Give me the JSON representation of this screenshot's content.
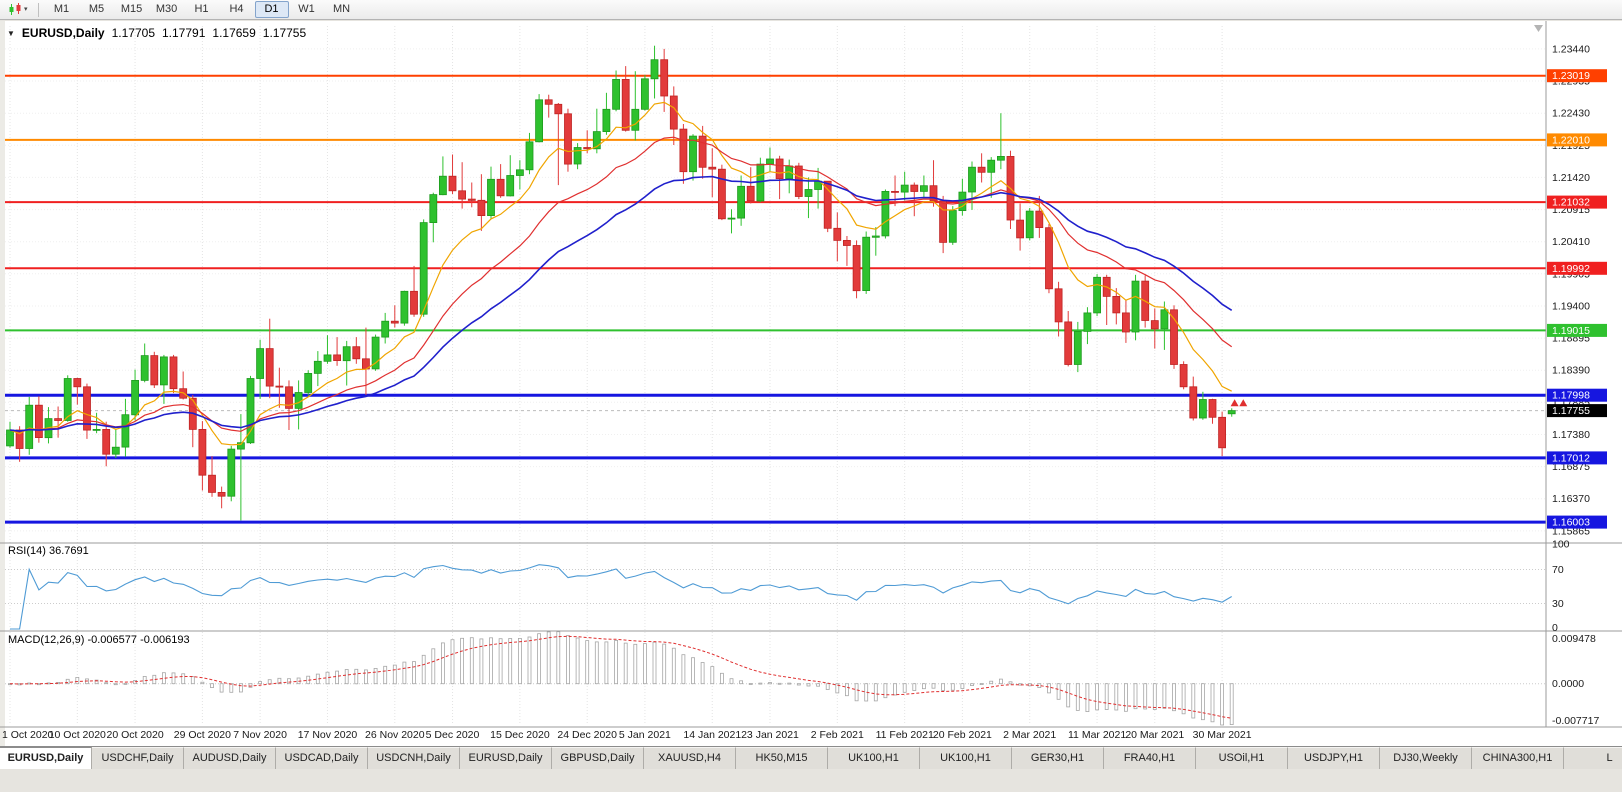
{
  "icons": {
    "window_caret": "▼",
    "toolbar_caret": "▾"
  },
  "toolbar": {
    "timeframes": [
      {
        "label": "M1",
        "active": false
      },
      {
        "label": "M5",
        "active": false
      },
      {
        "label": "M15",
        "active": false
      },
      {
        "label": "M30",
        "active": false
      },
      {
        "label": "H1",
        "active": false
      },
      {
        "label": "H4",
        "active": false
      },
      {
        "label": "D1",
        "active": true
      },
      {
        "label": "W1",
        "active": false
      },
      {
        "label": "MN",
        "active": false
      }
    ]
  },
  "chart": {
    "title": {
      "symbol_period": "EURUSD,Daily",
      "open": "1.17705",
      "high": "1.17791",
      "low": "1.17659",
      "close": "1.17755"
    },
    "price_axis": {
      "top_price": 1.238,
      "bottom_price": 1.1569,
      "label_start": 1.2344,
      "label_step": 0.00505,
      "label_count": 16
    },
    "candle_colors": {
      "up": "#2ec12e",
      "up_border": "#1d9a1d",
      "down": "#e23b3b",
      "down_border": "#bf2323"
    },
    "hlines": [
      {
        "price": 1.23019,
        "label": "1.23019",
        "color": "#ff4000",
        "width": 2
      },
      {
        "price": 1.2201,
        "label": "1.22010",
        "color": "#ff8a00",
        "width": 2
      },
      {
        "price": 1.21032,
        "label": "1.21032",
        "color": "#f02020",
        "width": 2
      },
      {
        "price": 1.19992,
        "label": "1.19992",
        "color": "#f02020",
        "width": 2
      },
      {
        "price": 1.19015,
        "label": "1.19015",
        "color": "#2fc12f",
        "width": 2
      },
      {
        "price": 1.17998,
        "label": "1.17998",
        "color": "#1616e0",
        "width": 3
      },
      {
        "price": 1.17012,
        "label": "1.17012",
        "color": "#1616e0",
        "width": 3
      },
      {
        "price": 1.16003,
        "label": "1.16003",
        "color": "#1616e0",
        "width": 3
      }
    ],
    "current_price": {
      "value": "1.17755",
      "tag_bg": "#000000"
    },
    "moving_averages": [
      {
        "period": 9,
        "color": "#f0a500",
        "width": 1.2
      },
      {
        "period": 20,
        "color": "#e03030",
        "width": 1.2
      },
      {
        "period": 34,
        "color": "#2020cc",
        "width": 1.6
      }
    ],
    "markers": {
      "color": "#e03030",
      "arrows": [
        {
          "i": 127.3,
          "price": 1.1787
        },
        {
          "i": 128.2,
          "price": 1.1787
        }
      ]
    },
    "candles": [
      [
        1.172,
        1.1758,
        1.1717,
        1.1745
      ],
      [
        1.1745,
        1.1751,
        1.1695,
        1.1716
      ],
      [
        1.1716,
        1.1797,
        1.1706,
        1.1784
      ],
      [
        1.1784,
        1.1798,
        1.1725,
        1.1733
      ],
      [
        1.1733,
        1.1781,
        1.1724,
        1.1763
      ],
      [
        1.1763,
        1.1782,
        1.1733,
        1.176
      ],
      [
        1.176,
        1.1831,
        1.1758,
        1.1826
      ],
      [
        1.1826,
        1.1827,
        1.1785,
        1.1813
      ],
      [
        1.1813,
        1.1818,
        1.1731,
        1.1745
      ],
      [
        1.1745,
        1.1772,
        1.174,
        1.1746
      ],
      [
        1.1746,
        1.1758,
        1.1688,
        1.1707
      ],
      [
        1.1707,
        1.1746,
        1.1701,
        1.1718
      ],
      [
        1.1718,
        1.1794,
        1.1703,
        1.1769
      ],
      [
        1.1769,
        1.184,
        1.176,
        1.1823
      ],
      [
        1.1823,
        1.1881,
        1.182,
        1.1862
      ],
      [
        1.1862,
        1.1868,
        1.1811,
        1.1816
      ],
      [
        1.1816,
        1.1863,
        1.1786,
        1.186
      ],
      [
        1.186,
        1.1863,
        1.1803,
        1.181
      ],
      [
        1.181,
        1.1837,
        1.1793,
        1.1795
      ],
      [
        1.1795,
        1.18,
        1.1718,
        1.1746
      ],
      [
        1.1746,
        1.1759,
        1.165,
        1.1674
      ],
      [
        1.1674,
        1.1704,
        1.164,
        1.1647
      ],
      [
        1.1647,
        1.1656,
        1.1622,
        1.1641
      ],
      [
        1.1641,
        1.172,
        1.1633,
        1.1715
      ],
      [
        1.1715,
        1.177,
        1.1603,
        1.1725
      ],
      [
        1.1725,
        1.183,
        1.1723,
        1.1826
      ],
      [
        1.1826,
        1.1887,
        1.1794,
        1.1873
      ],
      [
        1.1873,
        1.192,
        1.1795,
        1.1814
      ],
      [
        1.1814,
        1.1843,
        1.178,
        1.1813
      ],
      [
        1.1813,
        1.1823,
        1.1745,
        1.1779
      ],
      [
        1.1779,
        1.1823,
        1.1746,
        1.1804
      ],
      [
        1.1804,
        1.1839,
        1.1799,
        1.1834
      ],
      [
        1.1834,
        1.1869,
        1.1814,
        1.1853
      ],
      [
        1.1853,
        1.1894,
        1.1849,
        1.1863
      ],
      [
        1.1863,
        1.1891,
        1.1846,
        1.1854
      ],
      [
        1.1854,
        1.1885,
        1.1815,
        1.1876
      ],
      [
        1.1876,
        1.1891,
        1.1849,
        1.1857
      ],
      [
        1.1857,
        1.1906,
        1.18,
        1.1841
      ],
      [
        1.1841,
        1.1895,
        1.1838,
        1.1891
      ],
      [
        1.1891,
        1.1929,
        1.1881,
        1.1916
      ],
      [
        1.1916,
        1.1941,
        1.1906,
        1.1913
      ],
      [
        1.1913,
        1.1964,
        1.1909,
        1.1963
      ],
      [
        1.1963,
        1.2003,
        1.1923,
        1.1927
      ],
      [
        1.1927,
        1.2076,
        1.1923,
        1.2071
      ],
      [
        1.2071,
        1.2118,
        1.204,
        1.2115
      ],
      [
        1.2115,
        1.2175,
        1.2114,
        1.2144
      ],
      [
        1.2144,
        1.2178,
        1.2116,
        1.2121
      ],
      [
        1.2121,
        1.2166,
        1.2093,
        1.2108
      ],
      [
        1.2108,
        1.2134,
        1.2095,
        1.2106
      ],
      [
        1.2106,
        1.2147,
        1.2058,
        1.2082
      ],
      [
        1.2082,
        1.2159,
        1.2076,
        1.2139
      ],
      [
        1.2139,
        1.2163,
        1.211,
        1.2113
      ],
      [
        1.2113,
        1.2177,
        1.2112,
        1.2145
      ],
      [
        1.2145,
        1.2169,
        1.2123,
        1.2154
      ],
      [
        1.2154,
        1.2212,
        1.2147,
        1.2198
      ],
      [
        1.2198,
        1.2273,
        1.2197,
        1.2264
      ],
      [
        1.2264,
        1.2272,
        1.2236,
        1.2257
      ],
      [
        1.2257,
        1.2259,
        1.213,
        1.2242
      ],
      [
        1.2242,
        1.225,
        1.2151,
        1.2163
      ],
      [
        1.2163,
        1.2196,
        1.2155,
        1.2189
      ],
      [
        1.2189,
        1.2216,
        1.218,
        1.2187
      ],
      [
        1.2187,
        1.225,
        1.218,
        1.2214
      ],
      [
        1.2214,
        1.2275,
        1.2209,
        1.2249
      ],
      [
        1.2249,
        1.231,
        1.2246,
        1.2296
      ],
      [
        1.2296,
        1.2317,
        1.2214,
        1.2216
      ],
      [
        1.2216,
        1.2309,
        1.22,
        1.2249
      ],
      [
        1.2249,
        1.2303,
        1.2247,
        1.2297
      ],
      [
        1.2297,
        1.2349,
        1.2266,
        1.2327
      ],
      [
        1.2327,
        1.2344,
        1.2245,
        1.227
      ],
      [
        1.227,
        1.2285,
        1.2193,
        1.2218
      ],
      [
        1.2218,
        1.2226,
        1.2132,
        1.2151
      ],
      [
        1.2151,
        1.221,
        1.2137,
        1.2207
      ],
      [
        1.2207,
        1.2223,
        1.214,
        1.2158
      ],
      [
        1.2158,
        1.2188,
        1.2111,
        1.2155
      ],
      [
        1.2155,
        1.2162,
        1.2075,
        1.2077
      ],
      [
        1.2077,
        1.2092,
        1.2054,
        1.2078
      ],
      [
        1.2078,
        1.2145,
        1.2066,
        1.2128
      ],
      [
        1.2128,
        1.2158,
        1.2101,
        1.2105
      ],
      [
        1.2105,
        1.2173,
        1.2103,
        1.2163
      ],
      [
        1.2163,
        1.2189,
        1.2151,
        1.2171
      ],
      [
        1.2171,
        1.2176,
        1.2108,
        1.214
      ],
      [
        1.214,
        1.217,
        1.2117,
        1.216
      ],
      [
        1.216,
        1.2165,
        1.2108,
        1.2112
      ],
      [
        1.2112,
        1.2142,
        1.2078,
        1.2123
      ],
      [
        1.2123,
        1.2157,
        1.2093,
        1.2136
      ],
      [
        1.2136,
        1.2136,
        1.2056,
        1.2062
      ],
      [
        1.2062,
        1.2087,
        1.201,
        1.2043
      ],
      [
        1.2043,
        1.205,
        1.2003,
        1.2035
      ],
      [
        1.2035,
        1.2043,
        1.1952,
        1.1964
      ],
      [
        1.1964,
        1.2057,
        1.1959,
        1.2048
      ],
      [
        1.2048,
        1.2064,
        1.2019,
        1.205
      ],
      [
        1.205,
        1.2123,
        1.2046,
        1.212
      ],
      [
        1.212,
        1.2145,
        1.2097,
        1.2119
      ],
      [
        1.2119,
        1.2151,
        1.2106,
        1.213
      ],
      [
        1.213,
        1.2134,
        1.2081,
        1.212
      ],
      [
        1.212,
        1.2145,
        1.211,
        1.2129
      ],
      [
        1.2129,
        1.2169,
        1.2096,
        1.2105
      ],
      [
        1.2105,
        1.2113,
        1.2023,
        1.204
      ],
      [
        1.204,
        1.2097,
        1.2036,
        1.209
      ],
      [
        1.209,
        1.214,
        1.2082,
        1.2119
      ],
      [
        1.2119,
        1.2167,
        1.2091,
        1.2158
      ],
      [
        1.2158,
        1.218,
        1.2134,
        1.215
      ],
      [
        1.215,
        1.2174,
        1.211,
        1.2169
      ],
      [
        1.2169,
        1.2243,
        1.2155,
        1.2175
      ],
      [
        1.2175,
        1.2184,
        1.2061,
        1.2075
      ],
      [
        1.2075,
        1.2101,
        1.2027,
        1.2047
      ],
      [
        1.2047,
        1.2094,
        1.2043,
        1.2089
      ],
      [
        1.2089,
        1.2113,
        1.2047,
        1.2063
      ],
      [
        1.2063,
        1.2069,
        1.196,
        1.1967
      ],
      [
        1.1967,
        1.1978,
        1.1892,
        1.1915
      ],
      [
        1.1915,
        1.1932,
        1.1845,
        1.1848
      ],
      [
        1.1848,
        1.1915,
        1.1836,
        1.19
      ],
      [
        1.19,
        1.1938,
        1.188,
        1.1929
      ],
      [
        1.1929,
        1.199,
        1.1924,
        1.1985
      ],
      [
        1.1985,
        1.1989,
        1.191,
        1.1955
      ],
      [
        1.1955,
        1.1968,
        1.1911,
        1.1929
      ],
      [
        1.1929,
        1.195,
        1.1882,
        1.1899
      ],
      [
        1.1899,
        1.1989,
        1.1886,
        1.1979
      ],
      [
        1.1979,
        1.1988,
        1.1906,
        1.1917
      ],
      [
        1.1917,
        1.1936,
        1.1873,
        1.1904
      ],
      [
        1.1904,
        1.1947,
        1.1871,
        1.1934
      ],
      [
        1.1934,
        1.1941,
        1.1841,
        1.1848
      ],
      [
        1.1848,
        1.1853,
        1.1809,
        1.1813
      ],
      [
        1.1813,
        1.1829,
        1.176,
        1.1764
      ],
      [
        1.1764,
        1.1805,
        1.1761,
        1.1793
      ],
      [
        1.1793,
        1.1794,
        1.1755,
        1.1765
      ],
      [
        1.1765,
        1.1774,
        1.1704,
        1.1717
      ],
      [
        1.17705,
        1.17791,
        1.17659,
        1.17755
      ]
    ]
  },
  "rsi": {
    "label": "RSI(14) 36.7691",
    "period": 14,
    "color": "#4f9bd5",
    "levels": [
      100,
      70,
      30,
      0
    ]
  },
  "macd": {
    "label": "MACD(12,26,9) -0.006577 -0.006193",
    "fast": 12,
    "slow": 26,
    "signal_period": 9,
    "axis_max": "0.009478",
    "axis_zero": "0.0000",
    "axis_min": "-0.007717",
    "hist_color": "#a6a6a6",
    "signal_color": "#e03030"
  },
  "time_axis": {
    "labels": [
      {
        "t": "1 Oct 2020",
        "i": 0
      },
      {
        "t": "10 Oct 2020",
        "i": 7
      },
      {
        "t": "20 Oct 2020",
        "i": 13
      },
      {
        "t": "29 Oct 2020",
        "i": 20
      },
      {
        "t": "7 Nov 2020",
        "i": 26
      },
      {
        "t": "17 Nov 2020",
        "i": 33
      },
      {
        "t": "26 Nov 2020",
        "i": 40
      },
      {
        "t": "5 Dec 2020",
        "i": 46
      },
      {
        "t": "15 Dec 2020",
        "i": 53
      },
      {
        "t": "24 Dec 2020",
        "i": 60
      },
      {
        "t": "5 Jan 2021",
        "i": 66
      },
      {
        "t": "14 Jan 2021",
        "i": 73
      },
      {
        "t": "23 Jan 2021",
        "i": 79
      },
      {
        "t": "2 Feb 2021",
        "i": 86
      },
      {
        "t": "11 Feb 2021",
        "i": 93
      },
      {
        "t": "20 Feb 2021",
        "i": 99
      },
      {
        "t": "2 Mar 2021",
        "i": 106
      },
      {
        "t": "11 Mar 2021",
        "i": 113
      },
      {
        "t": "20 Mar 2021",
        "i": 119
      },
      {
        "t": "30 Mar 2021",
        "i": 126
      }
    ]
  },
  "tabs": [
    {
      "label": "EURUSD,Daily",
      "active": true
    },
    {
      "label": "USDCHF,Daily",
      "active": false
    },
    {
      "label": "AUDUSD,Daily",
      "active": false
    },
    {
      "label": "USDCAD,Daily",
      "active": false
    },
    {
      "label": "USDCNH,Daily",
      "active": false
    },
    {
      "label": "EURUSD,Daily",
      "active": false
    },
    {
      "label": "GBPUSD,Daily",
      "active": false
    },
    {
      "label": "XAUUSD,H4",
      "active": false
    },
    {
      "label": "HK50,M15",
      "active": false
    },
    {
      "label": "UK100,H1",
      "active": false
    },
    {
      "label": "UK100,H1",
      "active": false
    },
    {
      "label": "GER30,H1",
      "active": false
    },
    {
      "label": "FRA40,H1",
      "active": false
    },
    {
      "label": "USOil,H1",
      "active": false
    },
    {
      "label": "USDJPY,H1",
      "active": false
    },
    {
      "label": "DJ30,Weekly",
      "active": false
    },
    {
      "label": "CHINA300,H1",
      "active": false
    },
    {
      "label": "L",
      "active": false
    }
  ]
}
